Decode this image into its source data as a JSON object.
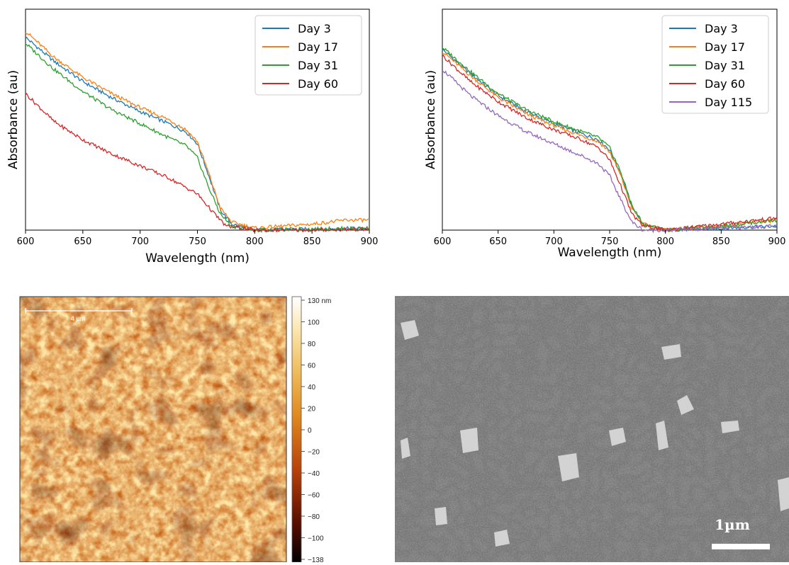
{
  "chart_data": [
    {
      "type": "line",
      "xlabel": "Wavelength (nm)",
      "ylabel": "Absorbance (au)",
      "xlim": [
        600,
        900
      ],
      "ylim": [
        0,
        1.1
      ],
      "x_ticks": [
        "600",
        "650",
        "700",
        "750",
        "800",
        "850",
        "900"
      ],
      "y_ticks_shown": false,
      "grid": false,
      "legend_position": "top-right",
      "series": [
        {
          "name": "Day 3",
          "color": "#1f77b4",
          "points": [
            [
              600,
              0.96
            ],
            [
              625,
              0.84
            ],
            [
              650,
              0.74
            ],
            [
              675,
              0.66
            ],
            [
              700,
              0.59
            ],
            [
              725,
              0.53
            ],
            [
              740,
              0.49
            ],
            [
              750,
              0.43
            ],
            [
              760,
              0.27
            ],
            [
              770,
              0.1
            ],
            [
              780,
              0.03
            ],
            [
              800,
              0.0
            ],
            [
              850,
              0.005
            ],
            [
              900,
              0.01
            ]
          ]
        },
        {
          "name": "Day 17",
          "color": "#ff7f0e",
          "points": [
            [
              600,
              0.99
            ],
            [
              625,
              0.86
            ],
            [
              650,
              0.76
            ],
            [
              675,
              0.68
            ],
            [
              700,
              0.61
            ],
            [
              725,
              0.55
            ],
            [
              740,
              0.5
            ],
            [
              750,
              0.44
            ],
            [
              760,
              0.28
            ],
            [
              770,
              0.11
            ],
            [
              780,
              0.04
            ],
            [
              800,
              0.01
            ],
            [
              850,
              0.03
            ],
            [
              880,
              0.05
            ],
            [
              900,
              0.05
            ]
          ]
        },
        {
          "name": "Day 31",
          "color": "#2ca02c",
          "points": [
            [
              600,
              0.93
            ],
            [
              625,
              0.8
            ],
            [
              650,
              0.69
            ],
            [
              675,
              0.6
            ],
            [
              700,
              0.53
            ],
            [
              725,
              0.46
            ],
            [
              740,
              0.42
            ],
            [
              750,
              0.36
            ],
            [
              760,
              0.21
            ],
            [
              770,
              0.08
            ],
            [
              780,
              0.02
            ],
            [
              800,
              0.0
            ],
            [
              850,
              0.005
            ],
            [
              900,
              0.01
            ]
          ]
        },
        {
          "name": "Day 60",
          "color": "#d62728",
          "points": [
            [
              600,
              0.68
            ],
            [
              625,
              0.54
            ],
            [
              650,
              0.45
            ],
            [
              675,
              0.38
            ],
            [
              700,
              0.32
            ],
            [
              725,
              0.26
            ],
            [
              750,
              0.18
            ],
            [
              765,
              0.08
            ],
            [
              775,
              0.02
            ],
            [
              800,
              0.0
            ],
            [
              850,
              0.0
            ],
            [
              900,
              0.005
            ]
          ]
        }
      ]
    },
    {
      "type": "line",
      "xlabel": "Wavelength (nm)",
      "ylabel": "Absorbance (au)",
      "xlim": [
        600,
        900
      ],
      "ylim": [
        0,
        1.1
      ],
      "x_ticks": [
        "600",
        "650",
        "700",
        "750",
        "800",
        "850",
        "900"
      ],
      "y_ticks_shown": false,
      "grid": false,
      "legend_position": "top-right",
      "series": [
        {
          "name": "Day 3",
          "color": "#1f77b4",
          "points": [
            [
              600,
              0.9
            ],
            [
              625,
              0.78
            ],
            [
              650,
              0.67
            ],
            [
              675,
              0.59
            ],
            [
              700,
              0.53
            ],
            [
              725,
              0.48
            ],
            [
              740,
              0.45
            ],
            [
              750,
              0.4
            ],
            [
              760,
              0.28
            ],
            [
              770,
              0.12
            ],
            [
              780,
              0.03
            ],
            [
              800,
              0.0
            ],
            [
              850,
              0.01
            ],
            [
              900,
              0.02
            ]
          ]
        },
        {
          "name": "Day 17",
          "color": "#ff7f0e",
          "points": [
            [
              600,
              0.89
            ],
            [
              625,
              0.77
            ],
            [
              650,
              0.66
            ],
            [
              675,
              0.58
            ],
            [
              700,
              0.52
            ],
            [
              725,
              0.47
            ],
            [
              740,
              0.44
            ],
            [
              750,
              0.39
            ],
            [
              760,
              0.27
            ],
            [
              770,
              0.11
            ],
            [
              780,
              0.03
            ],
            [
              800,
              0.0
            ],
            [
              850,
              0.02
            ],
            [
              900,
              0.05
            ]
          ]
        },
        {
          "name": "Day 31",
          "color": "#2ca02c",
          "points": [
            [
              600,
              0.91
            ],
            [
              625,
              0.79
            ],
            [
              650,
              0.68
            ],
            [
              675,
              0.6
            ],
            [
              700,
              0.54
            ],
            [
              725,
              0.49
            ],
            [
              740,
              0.46
            ],
            [
              750,
              0.41
            ],
            [
              760,
              0.29
            ],
            [
              770,
              0.12
            ],
            [
              780,
              0.03
            ],
            [
              800,
              0.0
            ],
            [
              850,
              0.02
            ],
            [
              900,
              0.05
            ]
          ]
        },
        {
          "name": "Day 60",
          "color": "#d62728",
          "points": [
            [
              600,
              0.87
            ],
            [
              625,
              0.74
            ],
            [
              650,
              0.64
            ],
            [
              675,
              0.56
            ],
            [
              700,
              0.5
            ],
            [
              725,
              0.45
            ],
            [
              740,
              0.41
            ],
            [
              750,
              0.35
            ],
            [
              760,
              0.22
            ],
            [
              770,
              0.08
            ],
            [
              780,
              0.02
            ],
            [
              800,
              0.0
            ],
            [
              850,
              0.03
            ],
            [
              900,
              0.06
            ]
          ]
        },
        {
          "name": "Day 115",
          "color": "#9467bd",
          "points": [
            [
              600,
              0.8
            ],
            [
              625,
              0.67
            ],
            [
              650,
              0.57
            ],
            [
              675,
              0.49
            ],
            [
              700,
              0.43
            ],
            [
              725,
              0.37
            ],
            [
              740,
              0.33
            ],
            [
              750,
              0.27
            ],
            [
              760,
              0.15
            ],
            [
              770,
              0.04
            ],
            [
              780,
              0.0
            ],
            [
              800,
              0.0
            ],
            [
              850,
              0.01
            ],
            [
              900,
              0.02
            ]
          ]
        }
      ]
    },
    {
      "type": "heatmap",
      "colorbar": {
        "ticks": [
          "130 nm",
          "100",
          "80",
          "60",
          "40",
          "20",
          "0",
          "−20",
          "−40",
          "−60",
          "−80",
          "−100",
          "−138"
        ],
        "range": [
          -138,
          130
        ],
        "unit": "nm",
        "colormap": [
          "#000000",
          "#5a0e00",
          "#b8420a",
          "#e0881e",
          "#f0bd5c",
          "#fbe7b0",
          "#ffffff"
        ]
      },
      "scale_bar": {
        "label": "4 µm"
      }
    }
  ],
  "sem": {
    "scale_bar_label": "1µm"
  }
}
